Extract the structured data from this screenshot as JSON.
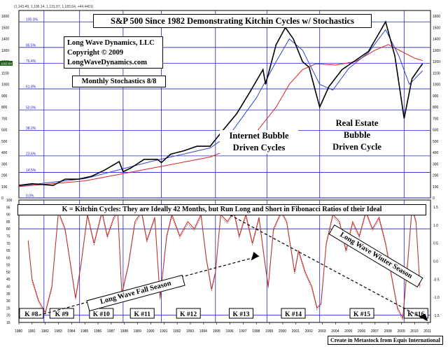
{
  "header_info": "(1,143.49, 1,196.14, 1,131.07, 1,183.64, +44.4401)",
  "title": "S&P 500 Since 1982 Demonstrating Kitchin Cycles w/ Stochastics",
  "copyright_box": {
    "line1": "Long Wave Dynamics, LLC",
    "line2": "Copyright © 2009",
    "line3": "LongWaveDynamics.com"
  },
  "stochastics_note": "Monthly Stochastics 8/8",
  "internet_label": {
    "line1": "Internet Bubble",
    "line2": "Driven Cycles"
  },
  "realestate_label": {
    "line1": "Real Estate",
    "line2": "Bubble",
    "line3": "Driven Cycle"
  },
  "kitchin_caption": "K = Kitchin Cycles: They are Ideally 42 Months, but Run Long and Short in Fibonacci Ratios of their Ideal",
  "fall_season_label": "Long Wave Fall Season",
  "winter_season_label": "Long Wave Winter Season",
  "footer": "Create in Metastock from Equis International",
  "current_price_tag": "1183.64",
  "colors": {
    "price": "#000000",
    "ma_short": "#3344cc",
    "ma_long": "#dd2222",
    "grid": "#2222cc",
    "stoch": "#dd2222"
  },
  "chart_data": [
    {
      "type": "line",
      "title": "S&P 500 Since 1982 Demonstrating Kitchin Cycles w/ Stochastics",
      "ylim": [
        0,
        1650
      ],
      "y_ticks": [
        0,
        100,
        200,
        300,
        400,
        500,
        600,
        700,
        800,
        900,
        1000,
        1100,
        1200,
        1300,
        1400,
        1500,
        1600
      ],
      "fib_levels": [
        {
          "label": "100.0%",
          "value": 1550
        },
        {
          "label": "85.5%",
          "value": 1325
        },
        {
          "label": "76.4%",
          "value": 1185
        },
        {
          "label": "61.8%",
          "value": 960
        },
        {
          "label": "50.0%",
          "value": 775
        },
        {
          "label": "38.2%",
          "value": 595
        },
        {
          "label": "23.6%",
          "value": 370
        },
        {
          "label": "14.5%",
          "value": 225
        },
        {
          "label": "0.0%",
          "value": 0
        }
      ],
      "series": [
        {
          "name": "S&P 500",
          "x": [
            1980,
            1981,
            1982.6,
            1983.5,
            1984.5,
            1985.5,
            1986.5,
            1987.6,
            1987.9,
            1988.5,
            1989.5,
            1990.5,
            1990.8,
            1991.5,
            1992.5,
            1993.5,
            1994.5,
            1995.5,
            1996.5,
            1997.5,
            1998.5,
            1998.7,
            1999.5,
            2000.2,
            2000.8,
            2001.5,
            2002.0,
            2002.8,
            2003.5,
            2004.5,
            2005.5,
            2006.5,
            2007.8,
            2008.5,
            2009.2,
            2009.8,
            2010.4,
            2010.6
          ],
          "values": [
            110,
            125,
            110,
            165,
            165,
            190,
            245,
            320,
            230,
            265,
            340,
            340,
            310,
            385,
            415,
            455,
            455,
            600,
            740,
            930,
            1130,
            1000,
            1350,
            1500,
            1400,
            1200,
            1150,
            800,
            980,
            1130,
            1210,
            1290,
            1550,
            1250,
            700,
            1050,
            1150,
            1180
          ]
        },
        {
          "name": "MA short",
          "x": [
            1980,
            1985,
            1990,
            1994.5,
            1996,
            1998,
            1999.5,
            2000.5,
            2001.5,
            2002.8,
            2003.8,
            2005,
            2006.5,
            2007.8,
            2008.8,
            2009.6,
            2010.6
          ],
          "values": [
            105,
            170,
            320,
            440,
            560,
            880,
            1200,
            1400,
            1300,
            1000,
            950,
            1140,
            1280,
            1480,
            1250,
            1000,
            1120
          ]
        },
        {
          "name": "MA long",
          "x": [
            1980,
            1985,
            1990,
            1994.5,
            1996,
            1998,
            1999.5,
            2000.5,
            2001.5,
            2002.5,
            2004,
            2005.5,
            2007,
            2008,
            2009,
            2010,
            2010.6
          ],
          "values": [
            100,
            150,
            260,
            360,
            430,
            580,
            800,
            1000,
            1130,
            1180,
            1170,
            1200,
            1300,
            1350,
            1290,
            1230,
            1210
          ]
        }
      ]
    },
    {
      "type": "line",
      "title": "Monthly Stochastics 8/8",
      "ylim": [
        15,
        100
      ],
      "y_ticks": [
        15,
        20,
        25,
        30,
        35,
        40,
        45,
        50,
        55,
        60,
        65,
        70,
        75,
        80,
        85,
        90,
        95,
        100
      ],
      "right_ticks": [
        "1.5",
        "1.0",
        "0.5",
        "0.0",
        "-0.5",
        "-1.0",
        "-1.5"
      ],
      "series": [
        {
          "name": "Stochastic",
          "x": [
            1980.7,
            1981,
            1981.5,
            1982,
            1982.5,
            1983,
            1983.5,
            1984,
            1984.3,
            1984.7,
            1985.2,
            1985.7,
            1986.3,
            1986.7,
            1987.2,
            1987.5,
            1987.8,
            1988.3,
            1988.8,
            1989.3,
            1989.7,
            1990.3,
            1990.7,
            1991.2,
            1991.6,
            1992.2,
            1992.8,
            1993.3,
            1993.8,
            1994.2,
            1994.6,
            1994.9,
            1995.3,
            1995.8,
            1996.3,
            1996.7,
            1997.2,
            1997.7,
            1998.2,
            1998.6,
            1998.9,
            1999.3,
            1999.9,
            2000.3,
            2000.9,
            2001.2,
            2001.7,
            2002.2,
            2002.6,
            2002.9,
            2003.3,
            2003.8,
            2004.3,
            2004.8,
            2005.3,
            2005.8,
            2006.3,
            2006.8,
            2007.3,
            2007.8,
            2008.3,
            2008.7,
            2009.1,
            2009.5,
            2009.8,
            2010.1,
            2010.4
          ],
          "values": [
            72,
            45,
            30,
            22,
            40,
            92,
            80,
            50,
            32,
            55,
            90,
            70,
            92,
            75,
            88,
            92,
            35,
            55,
            85,
            92,
            72,
            88,
            32,
            75,
            90,
            75,
            85,
            80,
            90,
            60,
            38,
            50,
            90,
            85,
            92,
            75,
            90,
            70,
            88,
            60,
            40,
            80,
            92,
            85,
            50,
            65,
            50,
            40,
            25,
            28,
            70,
            90,
            85,
            65,
            85,
            75,
            92,
            80,
            88,
            70,
            45,
            25,
            18,
            60,
            95,
            85,
            40
          ]
        }
      ]
    }
  ],
  "x_axis_years": [
    "1980",
    "1981",
    "1982",
    "1983",
    "1984",
    "1985",
    "1986",
    "1987",
    "1988",
    "1989",
    "1990",
    "1991",
    "1992",
    "1993",
    "1994",
    "1995",
    "1996",
    "1997",
    "1998",
    "1999",
    "2000",
    "2001",
    "2002",
    "2003",
    "2004",
    "2005",
    "2006",
    "2007",
    "2008",
    "2009",
    "2010",
    "2011"
  ],
  "kitchin_cycles": [
    {
      "label": "K #8",
      "start": 1980.0,
      "end": 1981.9
    },
    {
      "label": "K #9",
      "start": 1981.9,
      "end": 1984.6
    },
    {
      "label": "K #10",
      "start": 1984.6,
      "end": 1987.9
    },
    {
      "label": "K #11",
      "start": 1987.9,
      "end": 1990.8
    },
    {
      "label": "K #12",
      "start": 1990.8,
      "end": 1994.9
    },
    {
      "label": "K #13",
      "start": 1994.9,
      "end": 1998.8
    },
    {
      "label": "K #14",
      "start": 1998.8,
      "end": 2002.8
    },
    {
      "label": "K #15",
      "start": 2002.8,
      "end": 2009.2
    },
    {
      "label": "K #16",
      "start": 2009.2,
      "end": 2011.0
    }
  ]
}
